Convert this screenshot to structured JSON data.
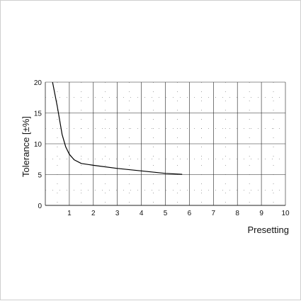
{
  "chart_data": {
    "type": "line",
    "title": "",
    "xlabel": "Presetting",
    "ylabel": "Tolerance [±%]",
    "xlim": [
      0,
      10
    ],
    "ylim": [
      0,
      20
    ],
    "x_ticks": [
      1,
      2,
      3,
      4,
      5,
      6,
      7,
      8,
      9,
      10
    ],
    "y_ticks": [
      0,
      5,
      10,
      15,
      20
    ],
    "grid": true,
    "legend": "none",
    "series": [
      {
        "name": "",
        "color": "#000000",
        "x": [
          0.3,
          0.5,
          0.7,
          0.85,
          1.0,
          1.2,
          1.5,
          2.0,
          3.0,
          4.0,
          5.0,
          5.7
        ],
        "y": [
          20,
          16,
          11.5,
          9.5,
          8.3,
          7.4,
          6.8,
          6.5,
          6.0,
          5.6,
          5.2,
          5.05
        ]
      }
    ]
  }
}
